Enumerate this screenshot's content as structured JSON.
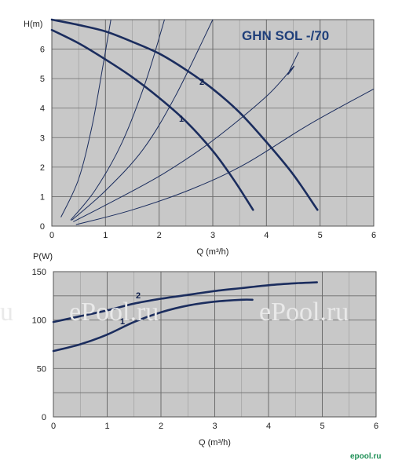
{
  "watermark": "ePool.ru",
  "watermark_left": "u",
  "brand_logo": "epool.ru",
  "chart_data": [
    {
      "type": "line",
      "title": "GHN SOL -/70",
      "ylabel": "H(m)",
      "xlabel": "Q (m³/h)",
      "xlim": [
        0,
        6
      ],
      "ylim": [
        0,
        7
      ],
      "xticks": [
        "0",
        "1",
        "2",
        "3",
        "4",
        "5",
        "6"
      ],
      "yticks": [
        "0",
        "1",
        "2",
        "3",
        "4",
        "5",
        "6"
      ],
      "grid": true,
      "background": "#c8c8c8",
      "curve_color": "#1b2d5e",
      "series": [
        {
          "name": "1",
          "points": [
            [
              0.0,
              6.65
            ],
            [
              0.5,
              6.2
            ],
            [
              1.0,
              5.65
            ],
            [
              1.5,
              5.05
            ],
            [
              2.0,
              4.35
            ],
            [
              2.5,
              3.55
            ],
            [
              3.0,
              2.55
            ],
            [
              3.4,
              1.55
            ],
            [
              3.75,
              0.55
            ]
          ]
        },
        {
          "name": "2",
          "points": [
            [
              0.0,
              7.0
            ],
            [
              0.5,
              6.82
            ],
            [
              1.0,
              6.6
            ],
            [
              1.5,
              6.25
            ],
            [
              2.0,
              5.85
            ],
            [
              2.5,
              5.3
            ],
            [
              3.0,
              4.65
            ],
            [
              3.5,
              3.85
            ],
            [
              4.0,
              2.85
            ],
            [
              4.5,
              1.75
            ],
            [
              4.95,
              0.55
            ]
          ]
        }
      ],
      "system_curves": [
        [
          [
            0.17,
            0.3
          ],
          [
            0.5,
            1.6
          ],
          [
            0.75,
            3.4
          ],
          [
            0.95,
            5.4
          ],
          [
            1.1,
            7.0
          ]
        ],
        [
          [
            0.35,
            0.2
          ],
          [
            0.8,
            1.2
          ],
          [
            1.3,
            2.8
          ],
          [
            1.75,
            4.9
          ],
          [
            2.1,
            7.0
          ]
        ],
        [
          [
            0.37,
            0.2
          ],
          [
            1.0,
            1.2
          ],
          [
            1.7,
            2.6
          ],
          [
            2.3,
            4.4
          ],
          [
            3.0,
            7.0
          ]
        ],
        [
          [
            0.4,
            0.15
          ],
          [
            1.2,
            0.9
          ],
          [
            2.1,
            1.8
          ],
          [
            3.0,
            2.9
          ],
          [
            4.0,
            4.4
          ],
          [
            4.5,
            5.4
          ],
          [
            4.4,
            5.15
          ],
          [
            4.6,
            5.9
          ]
        ],
        [
          [
            0.45,
            0.05
          ],
          [
            1.5,
            0.55
          ],
          [
            2.6,
            1.25
          ],
          [
            3.6,
            2.1
          ],
          [
            4.8,
            3.45
          ],
          [
            6.0,
            4.65
          ]
        ]
      ]
    },
    {
      "type": "line",
      "ylabel": "P(W)",
      "xlabel": "Q (m³/h)",
      "xlim": [
        0,
        6
      ],
      "ylim": [
        0,
        150
      ],
      "xticks": [
        "0",
        "1",
        "2",
        "3",
        "4",
        "5",
        "6"
      ],
      "yticks": [
        "0",
        "50",
        "100",
        "150"
      ],
      "grid": true,
      "background": "#c8c8c8",
      "curve_color": "#1b2d5e",
      "series": [
        {
          "name": "1",
          "points": [
            [
              0.0,
              68
            ],
            [
              0.5,
              75
            ],
            [
              1.0,
              85
            ],
            [
              1.5,
              98
            ],
            [
              2.0,
              108
            ],
            [
              2.5,
              115
            ],
            [
              3.0,
              119
            ],
            [
              3.5,
              121
            ],
            [
              3.7,
              121
            ]
          ]
        },
        {
          "name": "2",
          "points": [
            [
              0.0,
              98
            ],
            [
              0.5,
              104
            ],
            [
              1.0,
              110
            ],
            [
              1.5,
              117
            ],
            [
              2.0,
              122
            ],
            [
              2.5,
              126
            ],
            [
              3.0,
              130
            ],
            [
              3.5,
              133
            ],
            [
              4.0,
              136
            ],
            [
              4.5,
              138
            ],
            [
              4.9,
              139
            ]
          ]
        }
      ]
    }
  ]
}
